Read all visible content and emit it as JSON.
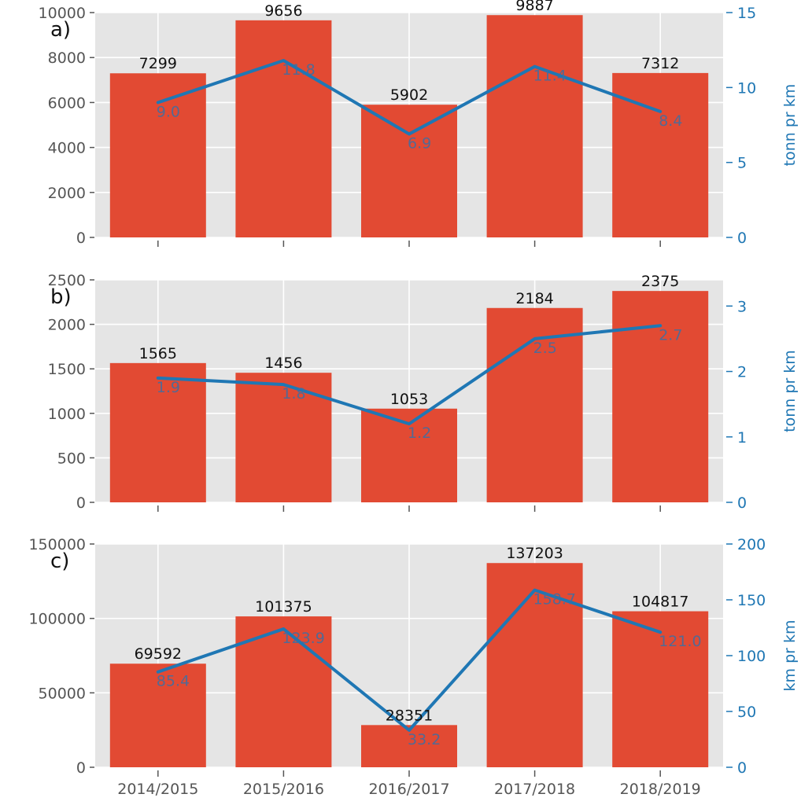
{
  "chart_data": [
    {
      "type": "bar",
      "panel_label": "a)",
      "categories": [
        "2014/2015",
        "2015/2016",
        "2016/2017",
        "2017/2018",
        "2018/2019"
      ],
      "show_x_tick_labels": false,
      "bar_color": "#e24a33",
      "line_color": "#1f77b4",
      "background": "#e5e5e5",
      "grid": true,
      "bars": {
        "values": [
          7299,
          9656,
          5902,
          9887,
          7312
        ],
        "labels": [
          "7299",
          "9656",
          "5902",
          "9887",
          "7312"
        ]
      },
      "line": {
        "values": [
          9.0,
          11.8,
          6.9,
          11.4,
          8.4
        ],
        "labels": [
          "9.0",
          "11.8",
          "6.9",
          "11.4",
          "8.4"
        ]
      },
      "left_axis": {
        "ylim": [
          0,
          10000
        ],
        "ticks": [
          0,
          2000,
          4000,
          6000,
          8000,
          10000
        ],
        "tick_labels": [
          "0",
          "2000",
          "4000",
          "6000",
          "8000",
          "10000"
        ]
      },
      "right_axis": {
        "label": "tonn pr km",
        "ylim": [
          0,
          15
        ],
        "ticks": [
          0,
          5,
          10,
          15
        ],
        "tick_labels": [
          "0",
          "5",
          "10",
          "15"
        ]
      }
    },
    {
      "type": "bar",
      "panel_label": "b)",
      "categories": [
        "2014/2015",
        "2015/2016",
        "2016/2017",
        "2017/2018",
        "2018/2019"
      ],
      "show_x_tick_labels": false,
      "bar_color": "#e24a33",
      "line_color": "#1f77b4",
      "background": "#e5e5e5",
      "grid": true,
      "bars": {
        "values": [
          1565,
          1456,
          1053,
          2184,
          2375
        ],
        "labels": [
          "1565",
          "1456",
          "1053",
          "2184",
          "2375"
        ]
      },
      "line": {
        "values": [
          1.9,
          1.8,
          1.2,
          2.5,
          2.7
        ],
        "labels": [
          "1.9",
          "1.8",
          "1.2",
          "2.5",
          "2.7"
        ]
      },
      "left_axis": {
        "ylim": [
          0,
          2500
        ],
        "ticks": [
          0,
          500,
          1000,
          1500,
          2000,
          2500
        ],
        "tick_labels": [
          "0",
          "500",
          "1000",
          "1500",
          "2000",
          "2500"
        ]
      },
      "right_axis": {
        "label": "tonn pr km",
        "ylim": [
          0,
          3.4
        ],
        "ticks": [
          0,
          1,
          2,
          3
        ],
        "tick_labels": [
          "0",
          "1",
          "2",
          "3"
        ]
      }
    },
    {
      "type": "bar",
      "panel_label": "c)",
      "categories": [
        "2014/2015",
        "2015/2016",
        "2016/2017",
        "2017/2018",
        "2018/2019"
      ],
      "show_x_tick_labels": true,
      "bar_color": "#e24a33",
      "line_color": "#1f77b4",
      "background": "#e5e5e5",
      "grid": true,
      "bars": {
        "values": [
          69592,
          101375,
          28351,
          137203,
          104817
        ],
        "labels": [
          "69592",
          "101375",
          "28351",
          "137203",
          "104817"
        ]
      },
      "line": {
        "values": [
          85.4,
          123.9,
          33.2,
          158.7,
          121.0
        ],
        "labels": [
          "85.4",
          "123.9",
          "33.2",
          "158.7",
          "121.0"
        ]
      },
      "left_axis": {
        "ylim": [
          0,
          150000
        ],
        "ticks": [
          0,
          50000,
          100000,
          150000
        ],
        "tick_labels": [
          "0",
          "50000",
          "100000",
          "150000"
        ]
      },
      "right_axis": {
        "label": "km pr km",
        "ylim": [
          0,
          200
        ],
        "ticks": [
          0,
          50,
          100,
          150,
          200
        ],
        "tick_labels": [
          "0",
          "50",
          "100",
          "150",
          "200"
        ]
      }
    }
  ]
}
